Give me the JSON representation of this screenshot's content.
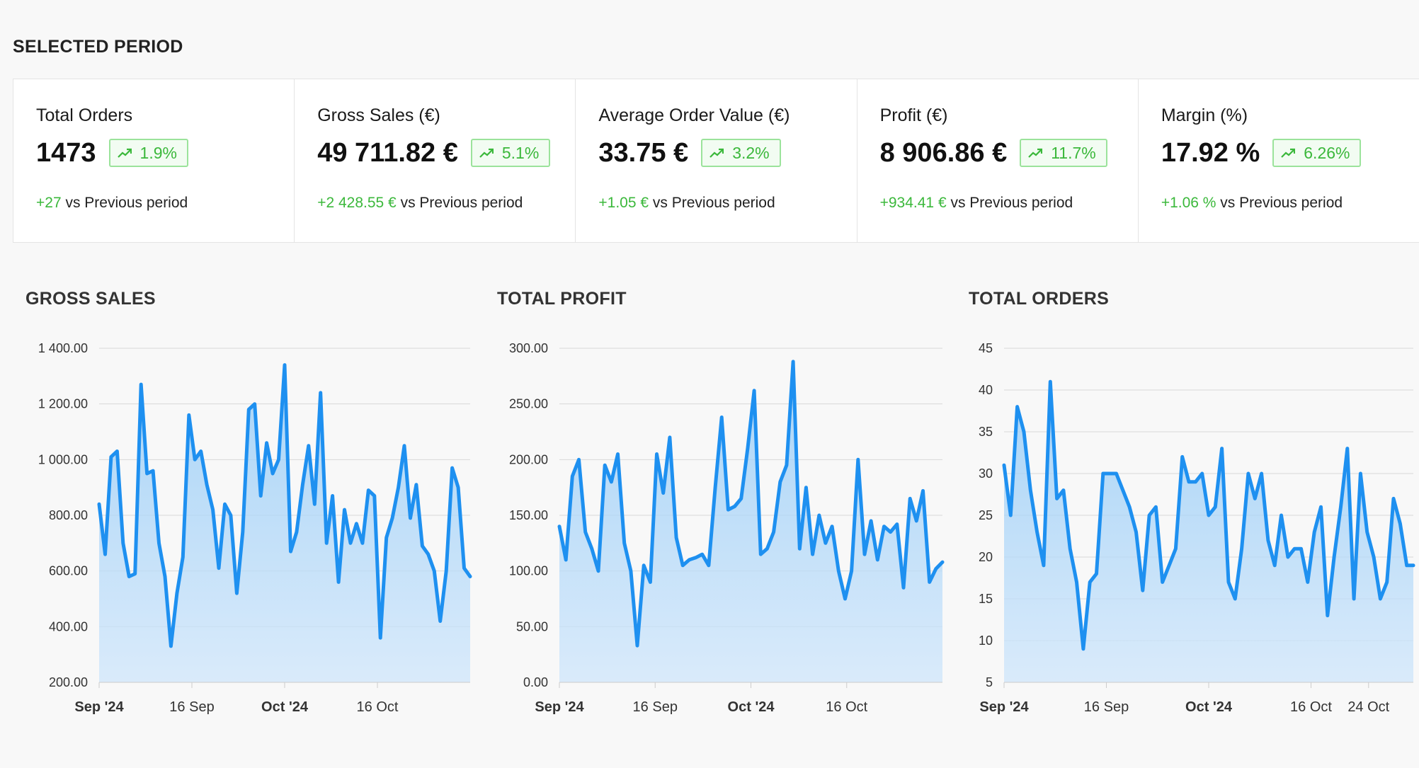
{
  "section_title": "SELECTED PERIOD",
  "colors": {
    "accent": "#1e90f0",
    "positive": "#3bb83b",
    "badge_border": "#9be39b"
  },
  "kpis": [
    {
      "label": "Total Orders",
      "value": "1473",
      "badge_icon": "trend-up-icon",
      "badge": "1.9%",
      "delta": "+27",
      "compare_text": " vs Previous period"
    },
    {
      "label": "Gross Sales (€)",
      "value": "49 711.82 €",
      "badge_icon": "trend-up-icon",
      "badge": "5.1%",
      "delta": "+2 428.55 €",
      "compare_text": " vs Previous period"
    },
    {
      "label": "Average Order Value (€)",
      "value": "33.75 €",
      "badge_icon": "trend-up-icon",
      "badge": "3.2%",
      "delta": "+1.05 €",
      "compare_text": " vs Previous period"
    },
    {
      "label": "Profit (€)",
      "value": "8 906.86 €",
      "badge_icon": "trend-up-icon",
      "badge": "11.7%",
      "delta": "+934.41 €",
      "compare_text": " vs Previous period"
    },
    {
      "label": "Margin (%)",
      "value": "17.92 %",
      "badge_icon": "trend-up-icon",
      "badge": "6.26%",
      "delta": "+1.06 %",
      "compare_text": " vs Previous period"
    }
  ],
  "chart_data": [
    {
      "type": "area",
      "title": "GROSS SALES",
      "ylim": [
        200,
        1400
      ],
      "y_ticks": [
        "1 400.00",
        "1 200.00",
        "1 000.00",
        "800.00",
        "600.00",
        "400.00",
        "200.00"
      ],
      "x_ticks": [
        {
          "label": "Sep '24",
          "major": true,
          "day": 0
        },
        {
          "label": "16 Sep",
          "major": false,
          "day": 15
        },
        {
          "label": "Oct '24",
          "major": true,
          "day": 30
        },
        {
          "label": "16 Oct",
          "major": false,
          "day": 45
        }
      ],
      "x_days": 60,
      "grid": true,
      "values": [
        840,
        660,
        1010,
        1030,
        700,
        580,
        590,
        1270,
        950,
        960,
        700,
        580,
        330,
        520,
        650,
        1160,
        1000,
        1030,
        910,
        820,
        610,
        840,
        800,
        520,
        740,
        1180,
        1200,
        870,
        1060,
        950,
        1000,
        1340,
        670,
        740,
        910,
        1050,
        840,
        1240,
        700,
        870,
        560,
        820,
        700,
        770,
        700,
        890,
        870,
        360,
        720,
        790,
        900,
        1050,
        790,
        910,
        690,
        660,
        600,
        420,
        600,
        970,
        900,
        610,
        580
      ]
    },
    {
      "type": "area",
      "title": "TOTAL PROFIT",
      "ylim": [
        0,
        300
      ],
      "y_ticks": [
        "300.00",
        "250.00",
        "200.00",
        "150.00",
        "100.00",
        "50.00",
        "0.00"
      ],
      "x_ticks": [
        {
          "label": "Sep '24",
          "major": true,
          "day": 0
        },
        {
          "label": "16 Sep",
          "major": false,
          "day": 15
        },
        {
          "label": "Oct '24",
          "major": true,
          "day": 30
        },
        {
          "label": "16 Oct",
          "major": false,
          "day": 45
        }
      ],
      "x_days": 60,
      "grid": true,
      "values": [
        140,
        110,
        185,
        200,
        135,
        120,
        100,
        195,
        180,
        205,
        125,
        100,
        33,
        105,
        90,
        205,
        170,
        220,
        130,
        105,
        110,
        112,
        115,
        105,
        175,
        238,
        155,
        158,
        165,
        210,
        262,
        115,
        120,
        135,
        180,
        195,
        288,
        120,
        175,
        115,
        150,
        125,
        140,
        100,
        75,
        100,
        200,
        115,
        145,
        110,
        140,
        135,
        142,
        85,
        165,
        145,
        172,
        90,
        102,
        108
      ]
    },
    {
      "type": "area",
      "title": "TOTAL ORDERS",
      "ylim": [
        5,
        45
      ],
      "y_ticks": [
        "45",
        "40",
        "35",
        "30",
        "25",
        "20",
        "15",
        "10",
        "5"
      ],
      "x_ticks": [
        {
          "label": "Sep '24",
          "major": true,
          "day": 0
        },
        {
          "label": "16 Sep",
          "major": false,
          "day": 16
        },
        {
          "label": "Oct '24",
          "major": true,
          "day": 32
        },
        {
          "label": "16 Oct",
          "major": false,
          "day": 48
        },
        {
          "label": "24 Oct",
          "major": false,
          "day": 57
        }
      ],
      "x_days": 64,
      "grid": true,
      "values": [
        31,
        25,
        38,
        35,
        28,
        23,
        19,
        41,
        27,
        28,
        21,
        17,
        9,
        17,
        18,
        30,
        30,
        30,
        28,
        26,
        23,
        16,
        25,
        26,
        17,
        19,
        21,
        32,
        29,
        29,
        30,
        25,
        26,
        33,
        17,
        15,
        21,
        30,
        27,
        30,
        22,
        19,
        25,
        20,
        21,
        21,
        17,
        23,
        26,
        13,
        20,
        26,
        33,
        15,
        30,
        23,
        20,
        15,
        17,
        27,
        24,
        19,
        19
      ]
    }
  ]
}
